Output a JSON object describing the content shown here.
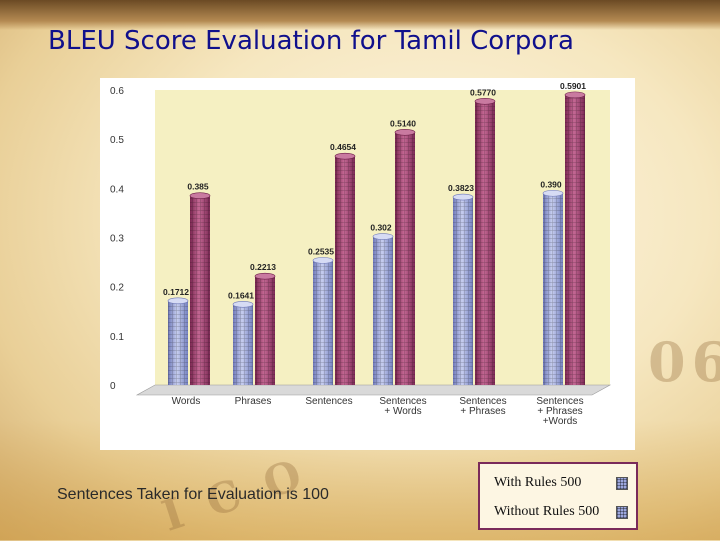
{
  "slide": {
    "title": "BLEU Score Evaluation for Tamil Corpora",
    "caption": "Sentences Taken for Evaluation is  100"
  },
  "legend": {
    "with_rules": "With Rules 500",
    "without_rules": "Without Rules 500"
  },
  "chart_data": {
    "type": "bar",
    "categories": [
      [
        "Words"
      ],
      [
        "Phrases"
      ],
      [
        "Sentences"
      ],
      [
        "Sentences",
        "+ Words"
      ],
      [
        "Sentences",
        "+ Phrases"
      ],
      [
        "Sentences",
        "+ Phrases",
        "+Words"
      ]
    ],
    "series": [
      {
        "name": "With Rules 500",
        "values": [
          0.1712,
          0.1641,
          0.2535,
          0.302,
          0.3823,
          0.39
        ],
        "labels": [
          "0.1712",
          "0.1641",
          "0.2535",
          "0.302",
          "0.3823",
          "0.390"
        ],
        "color": "#9da7dd"
      },
      {
        "name": "Without Rules 500",
        "values": [
          0.385,
          0.2213,
          0.4654,
          0.514,
          0.577,
          0.5901
        ],
        "labels": [
          "0.385",
          "0.2213",
          "0.4654",
          "0.5140",
          "0.5770",
          "0.5901"
        ],
        "color": "#a44472"
      }
    ],
    "yticks": [
      "0",
      "0.1",
      "0.2",
      "0.3",
      "0.4",
      "0.5",
      "0.6"
    ],
    "ylim": [
      0,
      0.6
    ],
    "title": "",
    "xlabel": "",
    "ylabel": "",
    "grid": false,
    "legend_position": "bottom-right"
  },
  "colors": {
    "title": "#10108c",
    "plot_wall": "#f5f0c2",
    "legend_border": "#7a2a5a"
  }
}
